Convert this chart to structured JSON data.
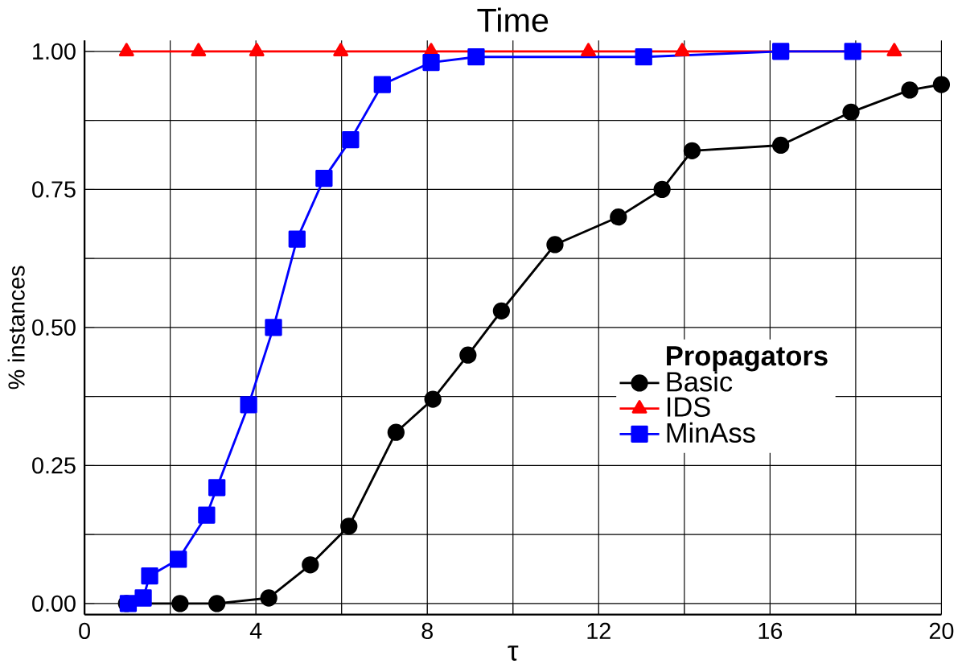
{
  "chart_data": {
    "type": "line",
    "title": "Time",
    "xlabel": "τ",
    "ylabel": "% instances",
    "legend_title": "Propagators",
    "legend": "right",
    "grid": true,
    "line_style": "solid",
    "xlim": [
      0,
      20
    ],
    "ylim": [
      -0.02,
      1.02
    ],
    "xticks": [
      0,
      {
        "value": 2,
        "label": null
      },
      4,
      {
        "value": 6,
        "label": null
      },
      8,
      {
        "value": 10,
        "label": null
      },
      12,
      {
        "value": 14,
        "label": null
      },
      16,
      {
        "value": 18,
        "label": null
      },
      20
    ],
    "yticks": [
      "0.00",
      {
        "value": 0.125,
        "label": null
      },
      {
        "value": 0.25,
        "label": "0.25"
      },
      {
        "value": 0.375,
        "label": null
      },
      {
        "value": 0.5,
        "label": "0.50"
      },
      {
        "value": 0.625,
        "label": null
      },
      {
        "value": 0.75,
        "label": "0.75"
      },
      {
        "value": 0.875,
        "label": null
      },
      {
        "value": 1,
        "label": "1.00"
      }
    ],
    "series": [
      {
        "name": "Basic",
        "color": "#000000",
        "marker": "circle",
        "x": [
          0.98,
          2.23,
          3.09,
          4.3,
          5.27,
          6.17,
          7.27,
          8.13,
          8.95,
          9.73,
          10.98,
          12.46,
          13.48,
          14.18,
          16.25,
          17.89,
          19.26,
          20
        ],
        "values": [
          0,
          0,
          0,
          0.01,
          0.07,
          0.14,
          0.31,
          0.37,
          0.45,
          0.53,
          0.65,
          0.7,
          0.75,
          0.82,
          0.83,
          0.89,
          0.93,
          0.94
        ]
      },
      {
        "name": "IDS",
        "color": "#ff0000",
        "marker": "triangle",
        "x": [
          0.98,
          2.66,
          4.02,
          5.98,
          8.09,
          11.76,
          13.95,
          18.9
        ],
        "values": [
          1,
          1,
          1,
          1,
          1,
          1,
          1,
          1
        ]
      },
      {
        "name": "MinAss",
        "color": "#0000ff",
        "marker": "square",
        "x": [
          1.02,
          1.37,
          1.52,
          2.19,
          2.85,
          3.09,
          3.83,
          4.41,
          4.96,
          5.59,
          6.21,
          6.95,
          8.09,
          9.14,
          13.05,
          16.25,
          17.93
        ],
        "values": [
          0,
          0.01,
          0.05,
          0.08,
          0.16,
          0.21,
          0.36,
          0.5,
          0.66,
          0.77,
          0.84,
          0.94,
          0.98,
          0.99,
          0.99,
          1,
          1
        ]
      }
    ]
  }
}
